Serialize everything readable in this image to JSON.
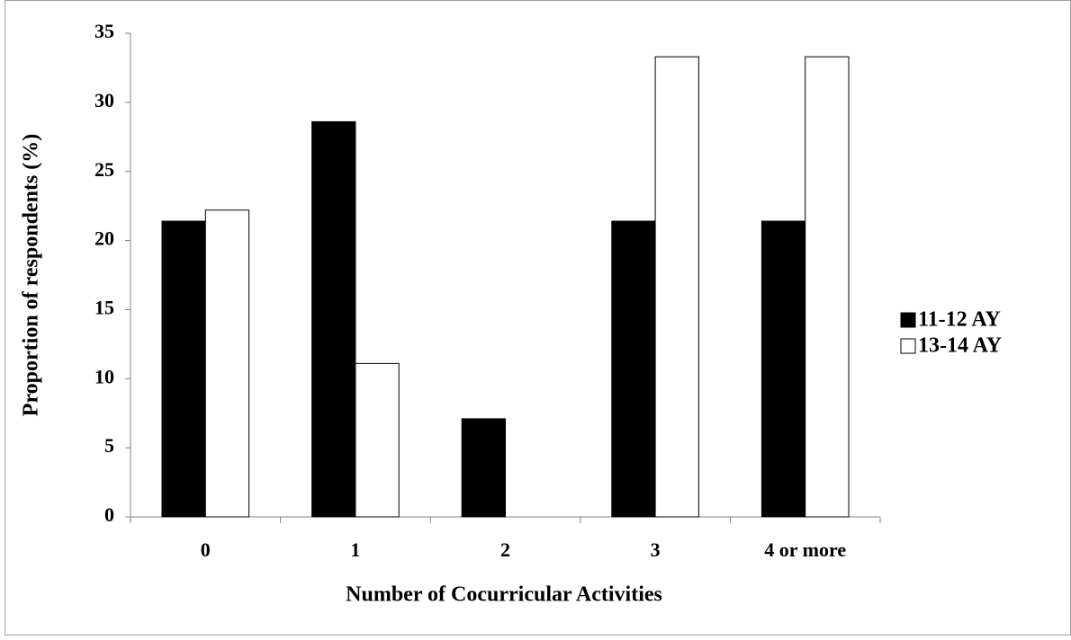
{
  "chart_data": {
    "type": "bar",
    "x_label": "Number of Cocurricular Activities",
    "y_label": "Proportion of respondents (%)",
    "categories": [
      "0",
      "1",
      "2",
      "3",
      "4 or more"
    ],
    "series": [
      {
        "name": "11-12 AY",
        "color": "#000000",
        "values": [
          21.4,
          28.6,
          7.1,
          21.4,
          21.4
        ]
      },
      {
        "name": "13-14 AY",
        "color": "#ffffff",
        "values": [
          22.2,
          11.1,
          0,
          33.3,
          33.3
        ]
      }
    ],
    "ylim": [
      0,
      35
    ],
    "yticks": [
      0,
      5,
      10,
      15,
      20,
      25,
      30,
      35
    ],
    "grid": false,
    "legend": "right"
  }
}
